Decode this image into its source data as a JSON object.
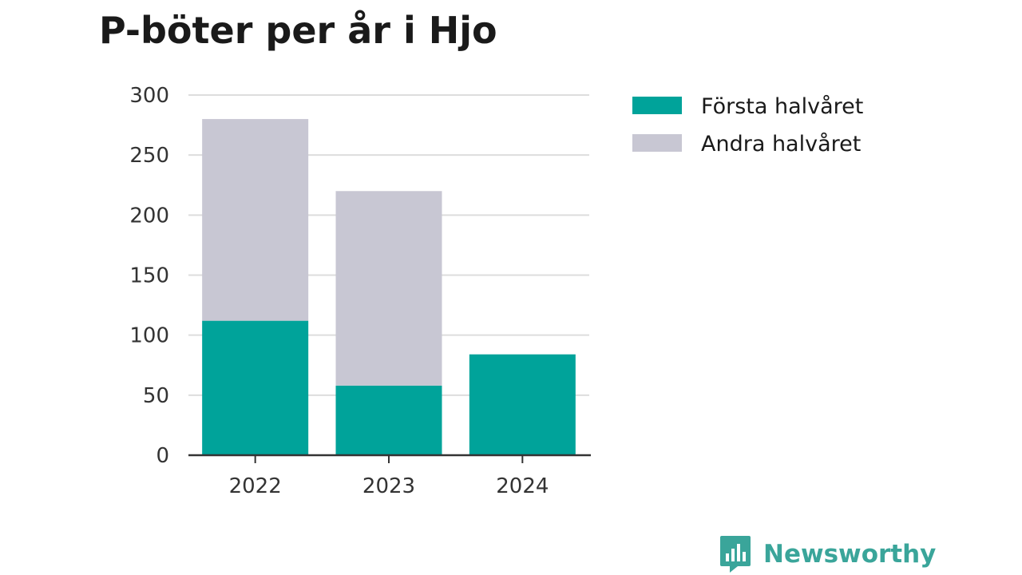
{
  "chart_data": {
    "type": "bar",
    "stacked": true,
    "title": "P-böter per år i Hjo",
    "xlabel": "",
    "ylabel": "",
    "categories": [
      "2022",
      "2023",
      "2024"
    ],
    "series": [
      {
        "name": "Första halvåret",
        "color": "#00a39a",
        "values": [
          112,
          58,
          84
        ]
      },
      {
        "name": "Andra halvåret",
        "color": "#c8c7d3",
        "values": [
          168,
          162,
          0
        ]
      }
    ],
    "ylim": [
      0,
      300
    ],
    "yticks": [
      "0",
      "50",
      "100",
      "150",
      "200",
      "250",
      "300"
    ],
    "grid": true,
    "legend_position": "right"
  },
  "brand": {
    "name": "Newsworthy",
    "icon": "newsworthy-logo-icon",
    "color": "#3aa59a"
  },
  "colors": {
    "gridline": "#dddddd",
    "axis": "#333333"
  }
}
